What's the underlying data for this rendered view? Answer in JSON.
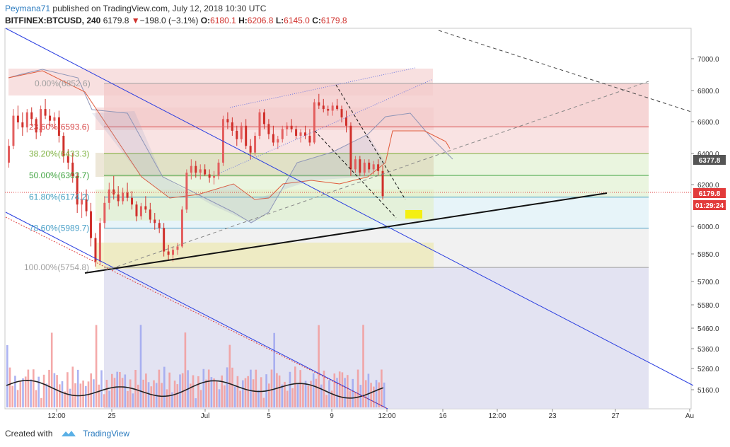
{
  "header": {
    "author": "Peymana71",
    "published_text": "published on TradingView.com, July 12, 2018 10:30 UTC",
    "symbol": "BITFINEX:BTCUSD, 240",
    "last": "6179.8",
    "change_arrow": "▼",
    "change": "−198.0 (−3.1%)",
    "o_label": "O:",
    "o_value": "6180.1",
    "h_label": "H:",
    "h_value": "6206.8",
    "l_label": "L:",
    "l_value": "6145.0",
    "c_label": "C:",
    "c_value": "6179.8"
  },
  "footer": {
    "created_with": "Created with",
    "brand": "TradingView",
    "logo_icon": "tradingview-logo-icon"
  },
  "price_tags": {
    "ichimoku": "6377.8",
    "last": "6179.8",
    "countdown": "01:29:24"
  },
  "colors": {
    "bull": "#e35e5e",
    "bear": "#d0302b",
    "fib_0": "#f3c7c7",
    "fib_236": "#f7d9d9",
    "fib_382": "#e3f2d4",
    "fib_618": "#dff0f7",
    "fib_786": "#ececec",
    "fib_100": "#dcdcef",
    "trend_blue": "#2a3ee0",
    "price_tag_red": "#e23b3b",
    "price_tag_dark": "#555555"
  },
  "chart_data": {
    "type": "candlestick",
    "y_ticks": [
      7000,
      6800,
      6600,
      6400,
      6200,
      6000,
      5850,
      5700,
      5580,
      5460,
      5360,
      5260,
      5160
    ],
    "y_tick_labels": [
      "7000.0",
      "6800.0",
      "6600.0",
      "6400.0",
      "6200.0",
      "6000.0",
      "5850.0",
      "5700.0",
      "5580.0",
      "5460.0",
      "5360.0",
      "5260.0",
      "5160.0"
    ],
    "x_tick_labels": [
      "12:00",
      "25",
      "Jul",
      "5",
      "9",
      "12:00",
      "16",
      "12:00",
      "23",
      "27",
      "Au"
    ],
    "fib_levels": [
      {
        "label": "0.00%(6852.6)",
        "ratio": 0.0,
        "price": 6852.6,
        "color": "#a0a0a0"
      },
      {
        "label": "23.60%(6593.6)",
        "ratio": 0.236,
        "price": 6593.6,
        "color": "#d84848"
      },
      {
        "label": "38.20%(6433.3)",
        "ratio": 0.382,
        "price": 6433.3,
        "color": "#7fb241"
      },
      {
        "label": "50.00%(6303.7)",
        "ratio": 0.5,
        "price": 6303.7,
        "color": "#3fa33f"
      },
      {
        "label": "61.80%(6174.2)",
        "ratio": 0.618,
        "price": 6174.2,
        "color": "#43a0c0"
      },
      {
        "label": "78.60%(5989.7)",
        "ratio": 0.786,
        "price": 5989.7,
        "color": "#4aa0c8"
      },
      {
        "label": "100.00%(5754.8)",
        "ratio": 1.0,
        "price": 5754.8,
        "color": "#a0a0a0"
      }
    ],
    "ohlc_series": [
      [
        6380,
        6520,
        6350,
        6480
      ],
      [
        6480,
        6700,
        6460,
        6660
      ],
      [
        6660,
        6720,
        6580,
        6620
      ],
      [
        6620,
        6680,
        6540,
        6590
      ],
      [
        6590,
        6700,
        6560,
        6680
      ],
      [
        6680,
        6710,
        6600,
        6640
      ],
      [
        6640,
        6650,
        6520,
        6560
      ],
      [
        6560,
        6720,
        6540,
        6700
      ],
      [
        6700,
        6760,
        6640,
        6660
      ],
      [
        6660,
        6700,
        6600,
        6630
      ],
      [
        6630,
        6680,
        6580,
        6650
      ],
      [
        6650,
        6690,
        6500,
        6540
      ],
      [
        6540,
        6560,
        6380,
        6420
      ],
      [
        6420,
        6460,
        6340,
        6380
      ],
      [
        6380,
        6440,
        6260,
        6300
      ],
      [
        6300,
        6320,
        6080,
        6130
      ],
      [
        6130,
        6200,
        6050,
        6160
      ],
      [
        6160,
        6220,
        6060,
        6090
      ],
      [
        6090,
        6140,
        5880,
        5930
      ],
      [
        5930,
        5960,
        5760,
        5790
      ],
      [
        5790,
        6050,
        5770,
        6020
      ],
      [
        6020,
        6180,
        5990,
        6140
      ],
      [
        6140,
        6260,
        6100,
        6220
      ],
      [
        6220,
        6300,
        6160,
        6190
      ],
      [
        6190,
        6240,
        6120,
        6150
      ],
      [
        6150,
        6230,
        6130,
        6200
      ],
      [
        6200,
        6260,
        6150,
        6170
      ],
      [
        6170,
        6210,
        6100,
        6130
      ],
      [
        6130,
        6150,
        6030,
        6060
      ],
      [
        6060,
        6140,
        6040,
        6120
      ],
      [
        6120,
        6180,
        6080,
        6100
      ],
      [
        6100,
        6140,
        6020,
        6040
      ],
      [
        6040,
        6080,
        5980,
        6020
      ],
      [
        6020,
        6040,
        5960,
        5990
      ],
      [
        5990,
        6020,
        5820,
        5850
      ],
      [
        5850,
        5890,
        5800,
        5830
      ],
      [
        5830,
        5880,
        5790,
        5860
      ],
      [
        5860,
        5900,
        5830,
        5880
      ],
      [
        5880,
        6120,
        5870,
        6100
      ],
      [
        6100,
        6340,
        6080,
        6320
      ],
      [
        6320,
        6400,
        6280,
        6360
      ],
      [
        6360,
        6390,
        6290,
        6320
      ],
      [
        6320,
        6370,
        6280,
        6340
      ],
      [
        6340,
        6370,
        6300,
        6310
      ],
      [
        6310,
        6340,
        6260,
        6290
      ],
      [
        6290,
        6330,
        6250,
        6300
      ],
      [
        6300,
        6400,
        6280,
        6380
      ],
      [
        6380,
        6660,
        6360,
        6640
      ],
      [
        6640,
        6680,
        6580,
        6620
      ],
      [
        6620,
        6650,
        6540,
        6570
      ],
      [
        6570,
        6600,
        6480,
        6520
      ],
      [
        6520,
        6620,
        6500,
        6600
      ],
      [
        6600,
        6640,
        6460,
        6480
      ],
      [
        6480,
        6520,
        6400,
        6440
      ],
      [
        6440,
        6560,
        6420,
        6540
      ],
      [
        6540,
        6700,
        6520,
        6680
      ],
      [
        6680,
        6700,
        6580,
        6610
      ],
      [
        6610,
        6640,
        6520,
        6550
      ],
      [
        6550,
        6600,
        6480,
        6500
      ],
      [
        6500,
        6540,
        6460,
        6520
      ],
      [
        6520,
        6600,
        6500,
        6580
      ],
      [
        6580,
        6620,
        6540,
        6600
      ],
      [
        6600,
        6640,
        6560,
        6580
      ],
      [
        6580,
        6600,
        6520,
        6540
      ],
      [
        6540,
        6580,
        6500,
        6560
      ],
      [
        6560,
        6600,
        6520,
        6540
      ],
      [
        6540,
        6580,
        6480,
        6500
      ],
      [
        6500,
        6760,
        6490,
        6740
      ],
      [
        6740,
        6790,
        6700,
        6720
      ],
      [
        6720,
        6760,
        6680,
        6700
      ],
      [
        6700,
        6720,
        6660,
        6690
      ],
      [
        6690,
        6740,
        6660,
        6720
      ],
      [
        6720,
        6760,
        6690,
        6700
      ],
      [
        6700,
        6720,
        6620,
        6650
      ],
      [
        6650,
        6690,
        6560,
        6600
      ],
      [
        6600,
        6620,
        6300,
        6340
      ],
      [
        6340,
        6420,
        6320,
        6400
      ],
      [
        6400,
        6420,
        6300,
        6320
      ],
      [
        6320,
        6400,
        6300,
        6380
      ],
      [
        6380,
        6400,
        6320,
        6340
      ],
      [
        6340,
        6390,
        6310,
        6370
      ],
      [
        6370,
        6400,
        6300,
        6330
      ],
      [
        6330,
        6360,
        6160,
        6180
      ]
    ]
  }
}
